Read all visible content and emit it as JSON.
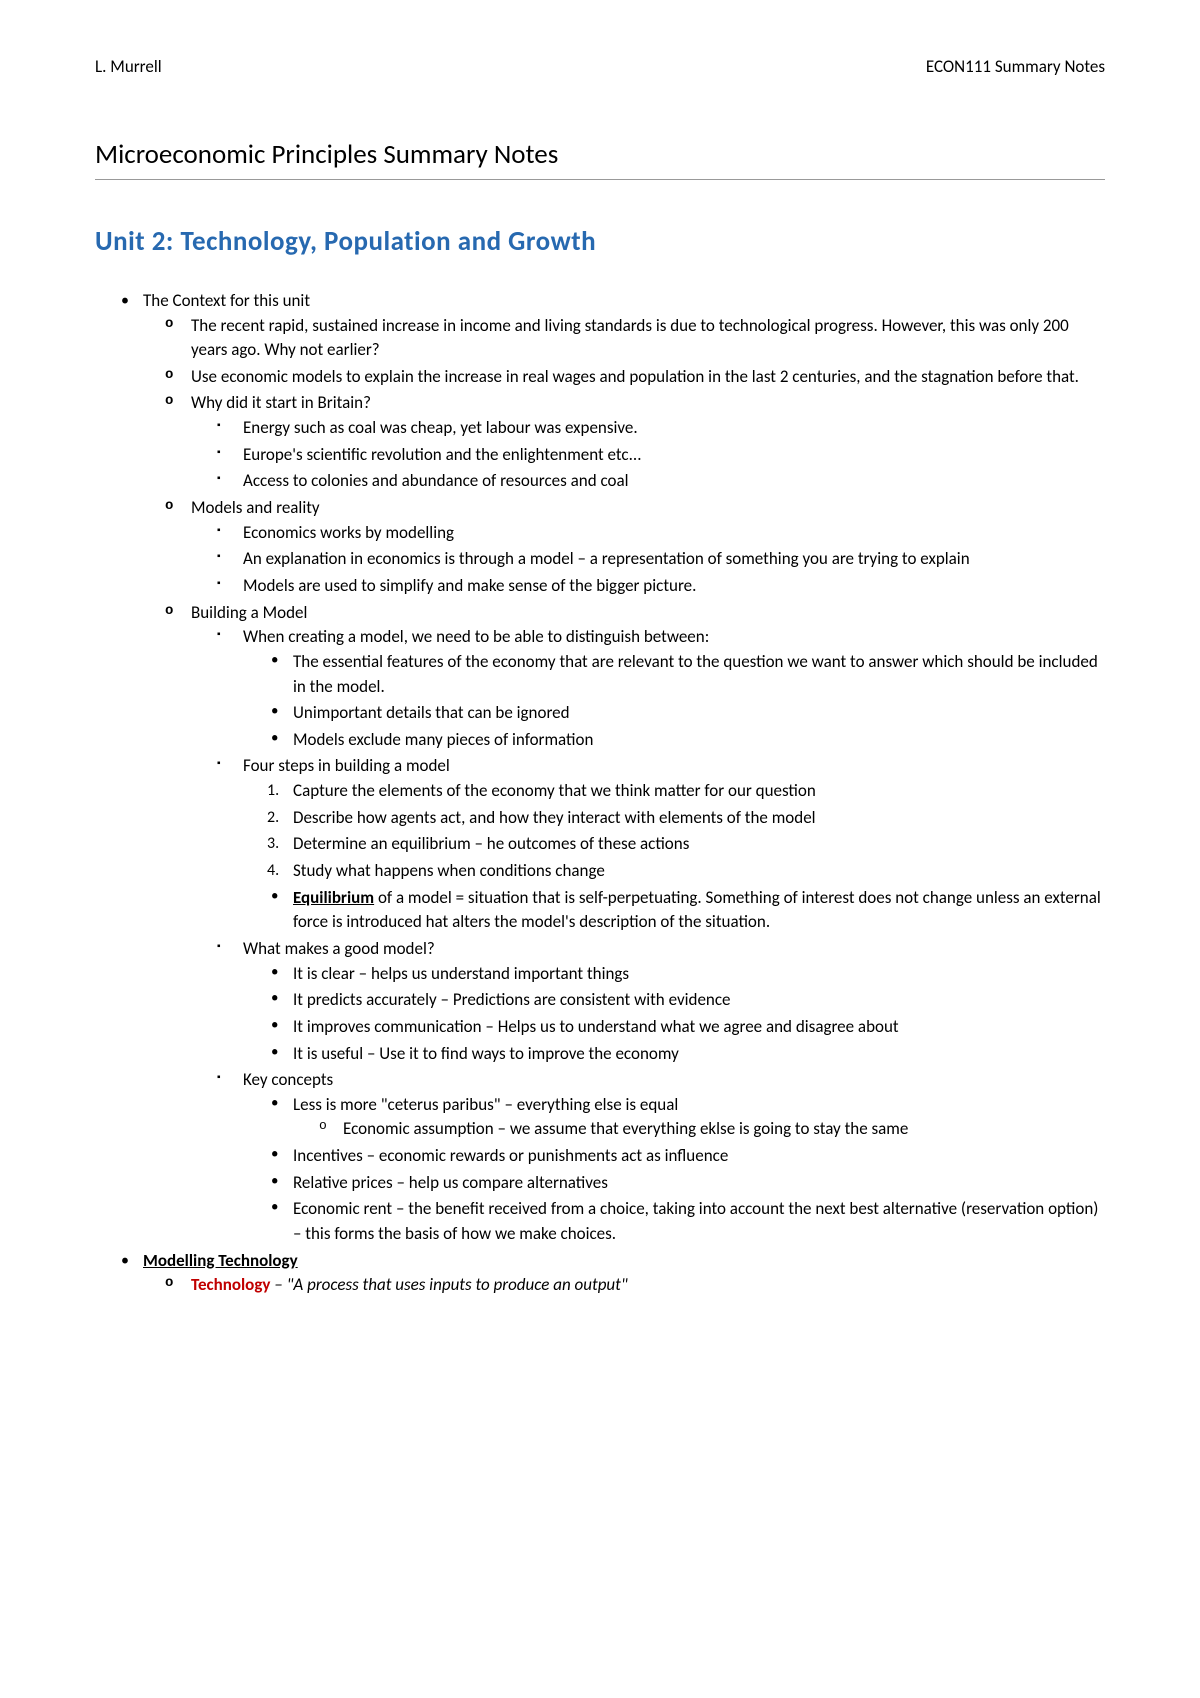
{
  "header": {
    "author": "L. Murrell",
    "course": "ECON111 Summary Notes"
  },
  "doc_title": "Microeconomic Principles Summary Notes",
  "unit_title": "Unit 2: Technology, Population and Growth",
  "colors": {
    "unit_title": "#2769b0",
    "key_term": "#c00000",
    "text": "#000000",
    "rule": "#999999"
  },
  "b1": {
    "title": "The Context for this unit",
    "o1": "The recent rapid, sustained increase in income and living standards is due to technological progress. However, this was only 200 years ago. Why not earlier?",
    "o2": "Use economic models to explain the increase in real wages and population in the last 2 centuries, and the stagnation before that.",
    "o3": {
      "title": "Why did it start in Britain?",
      "s1": "Energy such as coal was cheap, yet labour was expensive.",
      "s2": "Europe's scientific revolution and the enlightenment etc...",
      "s3": "Access to colonies and abundance of resources and coal"
    },
    "o4": {
      "title": "Models and reality",
      "s1": "Economics works by modelling",
      "s2": "An explanation in economics is through a model – a representation of something you are trying to explain",
      "s3": "Models are used to simplify and make sense of the bigger picture."
    },
    "o5": {
      "title": "Building a Model",
      "s1": {
        "title": "When creating a model, we need to be able to distinguish between:",
        "d1": "The essential features of the economy that are relevant to the question we want to answer which should be included in the model.",
        "d2": "Unimportant details that can be ignored",
        "d3": "Models exclude many pieces of information"
      },
      "s2": {
        "title": "Four steps in building a model",
        "n1": "Capture the elements of the economy that we think matter for our question",
        "n2": "Describe how agents act, and how they interact with elements of the model",
        "n3": "Determine an equilibrium – he outcomes of these actions",
        "n4": "Study what happens when conditions change",
        "eq_label": "Equilibrium",
        "eq_rest": " of a model = situation that is self-perpetuating. Something of interest does not change unless an external force is introduced hat alters the model's description of the situation."
      },
      "s3": {
        "title": "What makes a good model?",
        "d1": "It is clear – helps us understand important things",
        "d2": "It predicts accurately – Predictions are consistent with evidence",
        "d3": "It improves communication – Helps us to understand what we agree and disagree about",
        "d4": "It is useful – Use it to find ways to improve the economy"
      },
      "s4": {
        "title": "Key concepts",
        "d1": "Less is more \"ceterus paribus\" – everything else is equal",
        "d1a": "Economic assumption – we assume that everything eklse is going to stay the same",
        "d2": "Incentives – economic rewards or punishments act as influence",
        "d3": "Relative prices – help us compare alternatives",
        "d4": "Economic rent – the benefit received from a choice, taking into account the next best alternative (reservation option) – this forms the basis of how we make choices."
      }
    }
  },
  "b2": {
    "title": "Modelling Technology",
    "o1": {
      "term": "Technology",
      "rest": " – \"A process that uses inputs to produce an output\""
    }
  }
}
